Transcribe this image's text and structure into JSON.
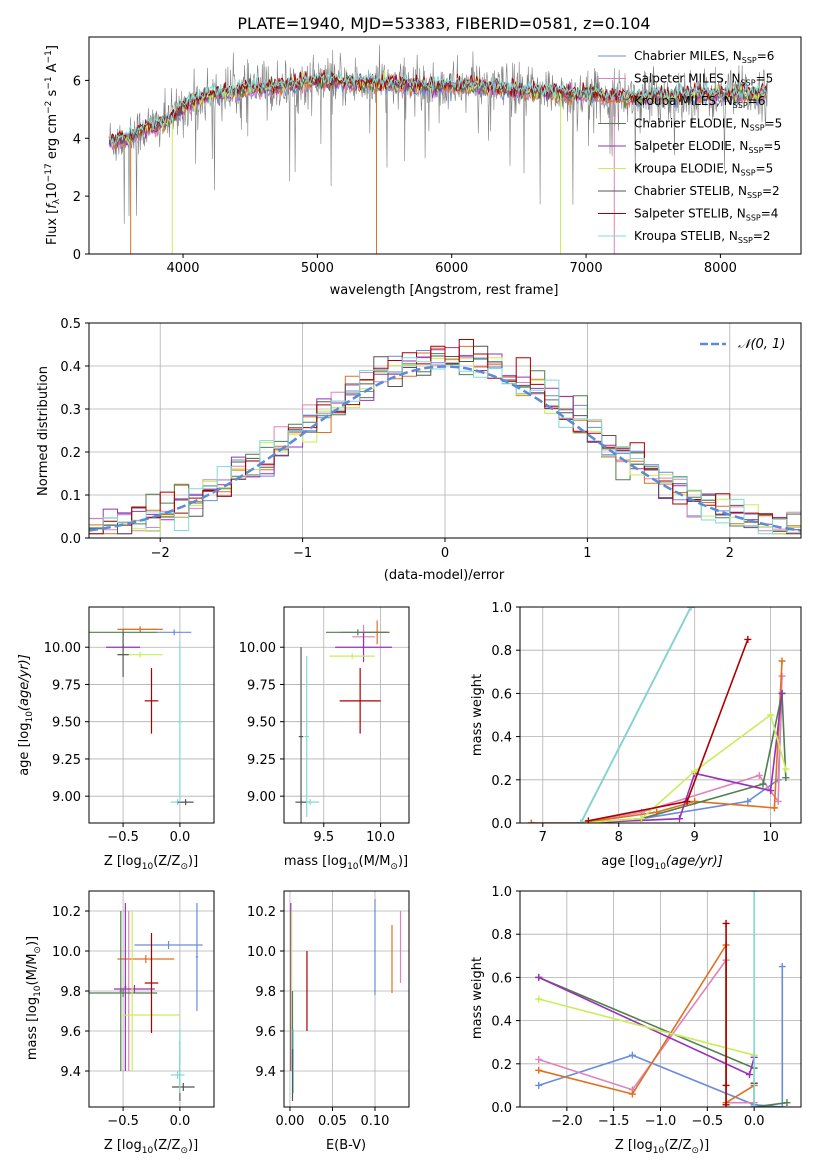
{
  "figure_title": "PLATE=1940, MJD=53383, FIBERID=0581, z=0.104",
  "colors": {
    "chabrier_miles": "#6a8cdb",
    "salpeter_miles": "#e083b8",
    "kroupa_miles": "#e07020",
    "chabrier_elodie": "#4f7f4f",
    "salpeter_elodie": "#9932b8",
    "kroupa_elodie": "#c8ee5a",
    "chabrier_stelib": "#555555",
    "salpeter_stelib": "#aa0000",
    "kroupa_stelib": "#7fdad8",
    "data": "#808080",
    "normal": "#5a8ad8"
  },
  "chart_data": [
    {
      "id": "spectrum",
      "type": "line",
      "xlabel": "wavelength [Angstrom, rest frame]",
      "ylabel": "Flux [f_λ 10^-17 erg cm^-2 s^-1 A^-1]",
      "ylabel_parts": {
        "main": "Flux [",
        "f": "f",
        "lambda": "λ",
        "ten": "10",
        "e17": "−17",
        "erg": " erg cm",
        "m2": "−2",
        "s": " s",
        "m1": "−1",
        "a": " A",
        "m1b": "−1",
        "close": "]"
      },
      "xlim": [
        3300,
        8600
      ],
      "ylim": [
        0,
        7.5
      ],
      "xticks": [
        4000,
        5000,
        6000,
        7000,
        8000
      ],
      "yticks": [
        0,
        2,
        4,
        6
      ],
      "legend_placement": "top-right",
      "legend": [
        {
          "name": "Chabrier MILES, N",
          "sub": "SSP",
          "n": "=6",
          "color_key": "chabrier_miles"
        },
        {
          "name": "Salpeter MILES, N",
          "sub": "SSP",
          "n": "=5",
          "color_key": "salpeter_miles"
        },
        {
          "name": "Kroupa MILES, N",
          "sub": "SSP",
          "n": "=6",
          "color_key": "kroupa_miles"
        },
        {
          "name": "Chabrier ELODIE, N",
          "sub": "SSP",
          "n": "=5",
          "color_key": "chabrier_elodie"
        },
        {
          "name": "Salpeter ELODIE, N",
          "sub": "SSP",
          "n": "=5",
          "color_key": "salpeter_elodie"
        },
        {
          "name": "Kroupa ELODIE, N",
          "sub": "SSP",
          "n": "=5",
          "color_key": "kroupa_elodie"
        },
        {
          "name": "Chabrier STELIB, N",
          "sub": "SSP",
          "n": "=2",
          "color_key": "chabrier_stelib"
        },
        {
          "name": "Salpeter STELIB, N",
          "sub": "SSP",
          "n": "=4",
          "color_key": "salpeter_stelib"
        },
        {
          "name": "Kroupa STELIB, N",
          "sub": "SSP",
          "n": "=2",
          "color_key": "kroupa_stelib"
        }
      ],
      "continuum_anchors": {
        "x": [
          3450,
          3600,
          3700,
          3900,
          4000,
          4200,
          4500,
          4800,
          5000,
          5400,
          5800,
          6200,
          6600,
          7000,
          7400,
          7800,
          8200,
          8350
        ],
        "y": [
          3.9,
          4.0,
          4.3,
          4.6,
          5.1,
          5.5,
          5.7,
          5.8,
          6.0,
          5.9,
          5.8,
          5.8,
          5.6,
          5.5,
          5.4,
          5.5,
          5.5,
          5.6
        ]
      }
    },
    {
      "id": "residuals",
      "type": "histogram",
      "xlabel": "(data-model)/error",
      "ylabel": "Normed distribution",
      "xlim": [
        -2.5,
        2.5
      ],
      "ylim": [
        0,
        0.5
      ],
      "xticks": [
        -2,
        -1,
        0,
        1,
        2
      ],
      "xtick_labels": [
        "−2",
        "−1",
        "0",
        "1",
        "2"
      ],
      "yticks": [
        0,
        0.1,
        0.2,
        0.3,
        0.4,
        0.5
      ],
      "ytick_labels": [
        "0.0",
        "0.1",
        "0.2",
        "0.3",
        "0.4",
        "0.5"
      ],
      "grid": true,
      "bin_width": 0.1,
      "legend": "N(0,1)",
      "legend_label": "𝒩(0, 1)",
      "legend_placement": "top-right",
      "reference_curve": "standard normal pdf"
    },
    {
      "id": "age_vs_Z",
      "type": "errorbar",
      "xlabel_main": "Z [log",
      "xlabel_sub": "10",
      "xlabel_rest": "(Z/Z",
      "xlabel_sun": "⊙",
      "xlabel_end": ")]",
      "ylabel_main": "age  [log",
      "ylabel_sub": "10",
      "ylabel_rest": "(age/yr)]",
      "xlim": [
        -0.8,
        0.3
      ],
      "ylim": [
        8.82,
        10.27
      ],
      "xticks": [
        -0.5,
        0.0
      ],
      "xtick_labels": [
        "−0.5",
        "0.0"
      ],
      "yticks": [
        9.0,
        9.25,
        9.5,
        9.75,
        10.0
      ],
      "ytick_labels": [
        "9.00",
        "9.25",
        "9.50",
        "9.75",
        "10.00"
      ],
      "points": [
        {
          "c": "chabrier_miles",
          "x": -0.05,
          "xe": 0.15,
          "y": 10.1,
          "ye": 0.02
        },
        {
          "c": "salpeter_miles",
          "x": -0.35,
          "xe": 0.15,
          "y": 10.12,
          "ye": 0.02
        },
        {
          "c": "kroupa_miles",
          "x": -0.35,
          "xe": 0.2,
          "y": 10.12,
          "ye": 0.02
        },
        {
          "c": "chabrier_elodie",
          "x": -0.5,
          "xe": 0.3,
          "y": 10.1,
          "ye": 0.02
        },
        {
          "c": "salpeter_elodie",
          "x": -0.5,
          "xe": 0.15,
          "y": 10.0,
          "ye": 0.02
        },
        {
          "c": "kroupa_elodie",
          "x": -0.35,
          "xe": 0.2,
          "y": 9.95,
          "ye": 0.02
        },
        {
          "c": "chabrier_stelib",
          "x": -0.5,
          "xe": 0.05,
          "y": 9.95,
          "ye": 0.15
        },
        {
          "c": "salpeter_stelib",
          "x": -0.25,
          "xe": 0.06,
          "y": 9.64,
          "ye": 0.22
        },
        {
          "c": "kroupa_stelib",
          "x": -0.02,
          "xe": 0.06,
          "y": 8.96,
          "ye": 0.02
        },
        {
          "c": "chabrier_stelib",
          "x": 0.05,
          "xe": 0.07,
          "y": 8.96,
          "ye": 0.02
        },
        {
          "c": "kroupa_stelib",
          "x": 0.0,
          "xe": 0.02,
          "y": 9.5,
          "ye": 0.54
        }
      ]
    },
    {
      "id": "age_vs_mass",
      "type": "errorbar",
      "xlabel_main": "mass [log",
      "xlabel_sub": "10",
      "xlabel_rest": "(M/M",
      "xlabel_sun": "⊙",
      "xlabel_end": ")]",
      "xlim": [
        9.15,
        10.25
      ],
      "ylim": [
        8.82,
        10.27
      ],
      "xticks": [
        9.5,
        10.0
      ],
      "xtick_labels": [
        "9.5",
        "10.0"
      ],
      "yticks": [
        9.0,
        9.25,
        9.5,
        9.75,
        10.0
      ],
      "ytick_labels": [
        "9.00",
        "9.25",
        "9.50",
        "9.75",
        "10.00"
      ],
      "points": [
        {
          "c": "chabrier_miles",
          "x": 9.85,
          "xe": 0.2,
          "y": 10.1,
          "ye": 0.02
        },
        {
          "c": "salpeter_miles",
          "x": 9.85,
          "xe": 0.1,
          "y": 10.07,
          "ye": 0.08
        },
        {
          "c": "kroupa_miles",
          "x": 9.97,
          "xe": 0.1,
          "y": 10.1,
          "ye": 0.08
        },
        {
          "c": "chabrier_elodie",
          "x": 9.8,
          "xe": 0.28,
          "y": 10.1,
          "ye": 0.02
        },
        {
          "c": "salpeter_elodie",
          "x": 9.85,
          "xe": 0.25,
          "y": 10.0,
          "ye": 0.1
        },
        {
          "c": "kroupa_elodie",
          "x": 9.75,
          "xe": 0.2,
          "y": 9.94,
          "ye": 0.02
        },
        {
          "c": "chabrier_stelib",
          "x": 9.3,
          "xe": 0.02,
          "y": 9.4,
          "ye": 0.6
        },
        {
          "c": "salpeter_stelib",
          "x": 9.82,
          "xe": 0.18,
          "y": 9.64,
          "ye": 0.22
        },
        {
          "c": "kroupa_stelib",
          "x": 9.38,
          "xe": 0.08,
          "y": 8.96,
          "ye": 0.02
        },
        {
          "c": "chabrier_stelib",
          "x": 9.3,
          "xe": 0.05,
          "y": 8.96,
          "ye": 0.02
        },
        {
          "c": "kroupa_stelib",
          "x": 9.35,
          "xe": 0.02,
          "y": 9.4,
          "ye": 0.54
        }
      ]
    },
    {
      "id": "weight_vs_age",
      "type": "line",
      "xlabel": "age  [log10(age/yr)]",
      "xlabel_main": "age  [log",
      "xlabel_sub": "10",
      "xlabel_rest": "(age/yr)]",
      "ylabel": "mass weight",
      "xlim": [
        6.7,
        10.4
      ],
      "ylim": [
        0,
        1
      ],
      "xticks": [
        7,
        8,
        9,
        10
      ],
      "yticks": [
        0,
        0.2,
        0.4,
        0.6,
        0.8,
        1.0
      ],
      "ytick_labels": [
        "0.0",
        "0.2",
        "0.4",
        "0.6",
        "0.8",
        "1.0"
      ],
      "grid": true,
      "series": [
        {
          "c": "chabrier_miles",
          "x": [
            7.5,
            8.3,
            9.7,
            10.1,
            10.15
          ],
          "y": [
            0.0,
            0.02,
            0.1,
            0.2,
            0.6
          ]
        },
        {
          "c": "salpeter_miles",
          "x": [
            6.85,
            7.5,
            8.3,
            9.85,
            10.1,
            10.15
          ],
          "y": [
            0.0,
            0.0,
            0.05,
            0.22,
            0.1,
            0.68
          ]
        },
        {
          "c": "kroupa_miles",
          "x": [
            6.85,
            7.5,
            8.5,
            9.0,
            10.05,
            10.15
          ],
          "y": [
            0.0,
            0.0,
            0.05,
            0.1,
            0.07,
            0.75
          ]
        },
        {
          "c": "chabrier_elodie",
          "x": [
            7.5,
            8.3,
            9.9,
            10.15,
            10.2
          ],
          "y": [
            0.0,
            0.02,
            0.18,
            0.6,
            0.21
          ]
        },
        {
          "c": "salpeter_elodie",
          "x": [
            7.5,
            8.8,
            9.0,
            10.0,
            10.15
          ],
          "y": [
            0.0,
            0.02,
            0.23,
            0.15,
            0.6
          ]
        },
        {
          "c": "kroupa_elodie",
          "x": [
            7.5,
            8.3,
            9.0,
            10.0,
            10.2
          ],
          "y": [
            0.0,
            0.02,
            0.24,
            0.5,
            0.25
          ]
        },
        {
          "c": "salpeter_stelib",
          "x": [
            7.6,
            8.9,
            9.7
          ],
          "y": [
            0.01,
            0.1,
            0.85
          ]
        },
        {
          "c": "chabrier_stelib",
          "x": [
            7.5,
            8.95
          ],
          "y": [
            0.0,
            1.0
          ]
        },
        {
          "c": "kroupa_stelib",
          "x": [
            7.5,
            8.95
          ],
          "y": [
            0.0,
            1.0
          ]
        }
      ]
    },
    {
      "id": "mass_vs_Z",
      "type": "errorbar",
      "xlabel_main": "Z [log",
      "xlabel_sub": "10",
      "xlabel_rest": "(Z/Z",
      "xlabel_sun": "⊙",
      "xlabel_end": ")]",
      "ylabel_main": "mass [log",
      "ylabel_sub": "10",
      "ylabel_rest": "(M/M",
      "ylabel_sun": "⊙",
      "ylabel_end": ")]",
      "xlim": [
        -0.8,
        0.3
      ],
      "ylim": [
        9.22,
        10.3
      ],
      "xticks": [
        -0.5,
        0.0
      ],
      "xtick_labels": [
        "−0.5",
        "0.0"
      ],
      "yticks": [
        9.4,
        9.6,
        9.8,
        10.0,
        10.2
      ],
      "ytick_labels": [
        "9.4",
        "9.6",
        "9.8",
        "10.0",
        "10.2"
      ],
      "points": [
        {
          "c": "chabrier_miles",
          "x": -0.1,
          "xe": 0.3,
          "y": 10.03,
          "ye": 0.02
        },
        {
          "c": "chabrier_miles",
          "x": 0.15,
          "xe": 0.01,
          "y": 9.97,
          "ye": 0.27
        },
        {
          "c": "kroupa_miles",
          "x": -0.3,
          "xe": 0.25,
          "y": 9.96,
          "ye": 0.02
        },
        {
          "c": "salpeter_miles",
          "x": -0.45,
          "xe": 0.01,
          "y": 9.8,
          "ye": 0.4
        },
        {
          "c": "chabrier_elodie",
          "x": -0.52,
          "xe": 0.01,
          "y": 9.8,
          "ye": 0.4
        },
        {
          "c": "chabrier_elodie",
          "x": -0.5,
          "xe": 0.3,
          "y": 9.79,
          "ye": 0.02
        },
        {
          "c": "salpeter_elodie",
          "x": -0.48,
          "xe": 0.01,
          "y": 9.82,
          "ye": 0.42
        },
        {
          "c": "salpeter_elodie",
          "x": -0.4,
          "xe": 0.18,
          "y": 9.81,
          "ye": 0.02
        },
        {
          "c": "kroupa_elodie",
          "x": -0.42,
          "xe": 0.01,
          "y": 9.8,
          "ye": 0.4
        },
        {
          "c": "kroupa_elodie",
          "x": -0.25,
          "xe": 0.25,
          "y": 9.68,
          "ye": 0.02
        },
        {
          "c": "salpeter_stelib",
          "x": -0.25,
          "xe": 0.06,
          "y": 9.84,
          "ye": 0.25
        },
        {
          "c": "kroupa_stelib",
          "x": -0.02,
          "xe": 0.06,
          "y": 9.38,
          "ye": 0.02
        },
        {
          "c": "chabrier_stelib",
          "x": 0.03,
          "xe": 0.1,
          "y": 9.32,
          "ye": 0.02
        },
        {
          "c": "chabrier_stelib",
          "x": 0.0,
          "xe": 0.005,
          "y": 9.4,
          "ye": 0.15
        },
        {
          "c": "kroupa_stelib",
          "x": 0.0,
          "xe": 0.005,
          "y": 9.45,
          "ye": 0.16
        }
      ]
    },
    {
      "id": "mass_vs_ebv",
      "type": "errorbar",
      "xlabel": "E(B-V)",
      "xlim": [
        -0.007,
        0.14
      ],
      "ylim": [
        9.22,
        10.3
      ],
      "xticks": [
        0.0,
        0.05,
        0.1
      ],
      "xtick_labels": [
        "0.00",
        "0.05",
        "0.10"
      ],
      "yticks": [
        9.4,
        9.6,
        9.8,
        10.0,
        10.2
      ],
      "ytick_labels": [
        "9.4",
        "9.6",
        "9.8",
        "10.0",
        "10.2"
      ],
      "points": [
        {
          "c": "chabrier_miles",
          "x": 0.1,
          "xe": 0.0,
          "y": 10.02,
          "ye": 0.24
        },
        {
          "c": "kroupa_miles",
          "x": 0.12,
          "xe": 0.0,
          "y": 9.96,
          "ye": 0.17
        },
        {
          "c": "salpeter_miles",
          "x": 0.13,
          "xe": 0.0,
          "y": 10.02,
          "ye": 0.18
        },
        {
          "c": "salpeter_stelib",
          "x": 0.02,
          "xe": 0.0,
          "y": 9.8,
          "ye": 0.2
        },
        {
          "c": "salpeter_elodie",
          "x": 0.001,
          "xe": 0.0,
          "y": 9.82,
          "ye": 0.42
        },
        {
          "c": "kroupa_elodie",
          "x": 0.002,
          "xe": 0.0,
          "y": 9.8,
          "ye": 0.4
        },
        {
          "c": "chabrier_elodie",
          "x": 0.003,
          "xe": 0.0,
          "y": 9.6,
          "ye": 0.2
        },
        {
          "c": "kroupa_stelib",
          "x": 0.004,
          "xe": 0.0,
          "y": 9.45,
          "ye": 0.16
        },
        {
          "c": "chabrier_stelib",
          "x": 0.003,
          "xe": 0.0,
          "y": 9.38,
          "ye": 0.13
        }
      ]
    },
    {
      "id": "weight_vs_Z",
      "type": "line",
      "xlabel": "Z [log10(Z/Z⊙)]",
      "xlabel_main": "Z [log",
      "xlabel_sub": "10",
      "xlabel_rest": "(Z/Z",
      "xlabel_sun": "⊙",
      "xlabel_end": ")]",
      "ylabel": "mass weight",
      "xlim": [
        -2.5,
        0.5
      ],
      "ylim": [
        0,
        1
      ],
      "xticks": [
        -2.0,
        -1.5,
        -1.0,
        -0.5,
        0.0
      ],
      "xtick_labels": [
        "−2.0",
        "−1.5",
        "−1.0",
        "−0.5",
        "0.0"
      ],
      "yticks": [
        0,
        0.2,
        0.4,
        0.6,
        0.8,
        1.0
      ],
      "ytick_labels": [
        "0.0",
        "0.2",
        "0.4",
        "0.6",
        "0.8",
        "1.0"
      ],
      "grid": true,
      "series": [
        {
          "c": "chabrier_miles",
          "x": [
            -2.3,
            -1.3,
            0.0,
            0.3,
            0.3
          ],
          "y": [
            0.1,
            0.24,
            0.01,
            0.0,
            0.65
          ]
        },
        {
          "c": "salpeter_miles",
          "x": [
            -2.3,
            -1.3,
            -0.3,
            -0.3,
            0.0
          ],
          "y": [
            0.22,
            0.08,
            0.68,
            0.02,
            0.02
          ]
        },
        {
          "c": "kroupa_miles",
          "x": [
            -2.3,
            -1.3,
            -0.3,
            -0.3,
            0.0
          ],
          "y": [
            0.17,
            0.06,
            0.75,
            0.02,
            0.1
          ]
        },
        {
          "c": "chabrier_elodie",
          "x": [
            -2.3,
            0.0,
            0.0,
            0.35
          ],
          "y": [
            0.6,
            0.18,
            0.0,
            0.02
          ]
        },
        {
          "c": "salpeter_elodie",
          "x": [
            -2.3,
            -0.05,
            0.0
          ],
          "y": [
            0.6,
            0.15,
            0.23
          ]
        },
        {
          "c": "kroupa_elodie",
          "x": [
            -2.3,
            0.0,
            0.0
          ],
          "y": [
            0.5,
            0.24,
            0.24
          ]
        },
        {
          "c": "salpeter_stelib",
          "x": [
            -0.3,
            -0.3,
            -0.3
          ],
          "y": [
            0.01,
            0.1,
            0.85
          ]
        },
        {
          "c": "chabrier_stelib",
          "x": [
            0.0,
            0.0,
            0.0
          ],
          "y": [
            0.0,
            0.11,
            0.11
          ]
        },
        {
          "c": "kroupa_stelib",
          "x": [
            0.0,
            0.0
          ],
          "y": [
            0.0,
            1.0
          ]
        }
      ]
    }
  ]
}
